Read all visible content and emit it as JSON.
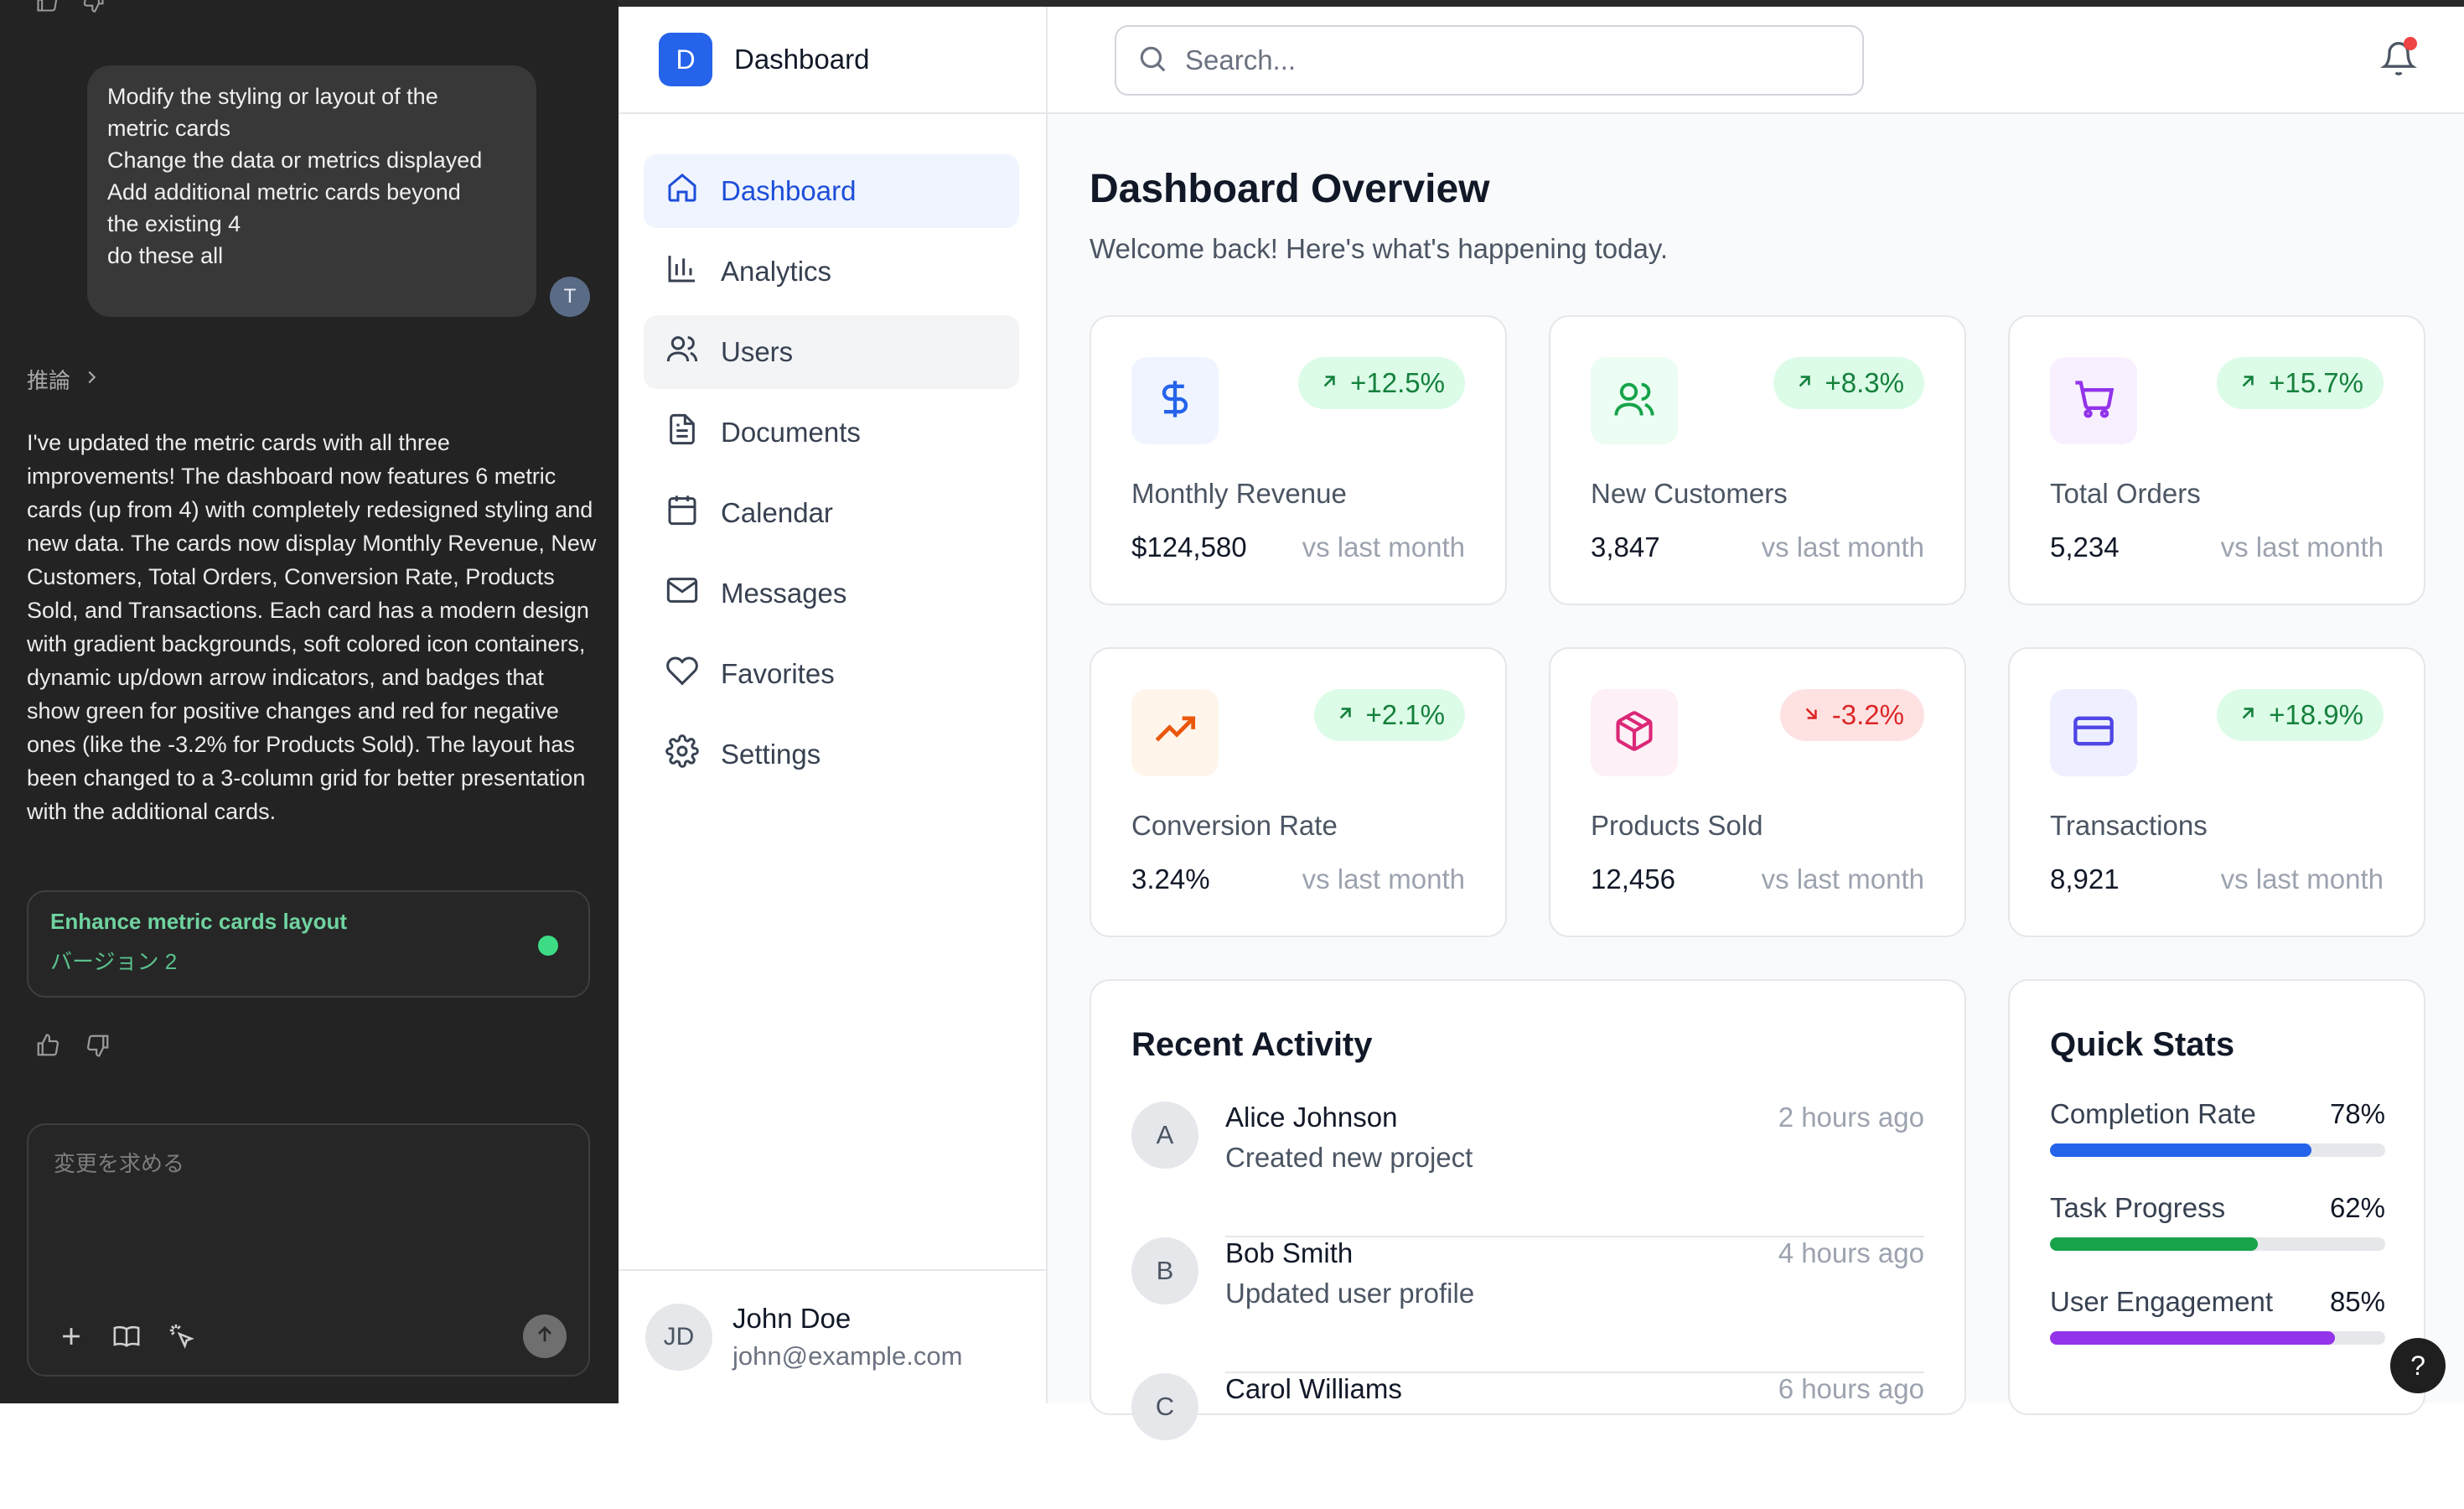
{
  "chat": {
    "user_message": {
      "lines": [
        "Modify the styling or layout of the",
        "metric cards",
        "Change the data or metrics displayed",
        "Add additional metric cards beyond",
        "the existing 4",
        "",
        "do these all"
      ],
      "avatar_initial": "T"
    },
    "reasoning_label": "推論",
    "assistant_message": "I've updated the metric cards with all three improvements! The dashboard now features 6 metric cards (up from 4) with completely redesigned styling and new data. The cards now display Monthly Revenue, New Customers, Total Orders, Conversion Rate, Products Sold, and Transactions. Each card has a modern design with gradient backgrounds, soft colored icon containers, dynamic up/down arrow indicators, and badges that show green for positive changes and red for negative ones (like the -3.2% for Products Sold). The layout has been changed to a 3-column grid for better presentation with the additional cards.",
    "artifact": {
      "title": "Enhance metric cards layout",
      "version": "バージョン 2"
    },
    "composer": {
      "placeholder": "変更を求める"
    }
  },
  "app": {
    "brand": {
      "logo_letter": "D",
      "name": "Dashboard"
    },
    "search": {
      "placeholder": "Search..."
    },
    "nav": [
      {
        "label": "Dashboard",
        "icon": "home-icon"
      },
      {
        "label": "Analytics",
        "icon": "bar-chart-icon"
      },
      {
        "label": "Users",
        "icon": "users-icon"
      },
      {
        "label": "Documents",
        "icon": "document-icon"
      },
      {
        "label": "Calendar",
        "icon": "calendar-icon"
      },
      {
        "label": "Messages",
        "icon": "mail-icon"
      },
      {
        "label": "Favorites",
        "icon": "heart-icon"
      },
      {
        "label": "Settings",
        "icon": "gear-icon"
      }
    ],
    "profile": {
      "initials": "JD",
      "name": "John Doe",
      "email": "john@example.com"
    },
    "page": {
      "title": "Dashboard Overview",
      "subtitle": "Welcome back! Here's what's happening today."
    },
    "metrics": [
      {
        "label": "Monthly Revenue",
        "value": "$124,580",
        "change": "+12.5%",
        "trend": "up",
        "compare": "vs last month",
        "icon": "dollar-icon",
        "color": "#2563eb",
        "bg": "#eff4ff"
      },
      {
        "label": "New Customers",
        "value": "3,847",
        "change": "+8.3%",
        "trend": "up",
        "compare": "vs last month",
        "icon": "users-icon",
        "color": "#16a34a",
        "bg": "#ecfdf3"
      },
      {
        "label": "Total Orders",
        "value": "5,234",
        "change": "+15.7%",
        "trend": "up",
        "compare": "vs last month",
        "icon": "cart-icon",
        "color": "#9333ea",
        "bg": "#f8f0ff"
      },
      {
        "label": "Conversion Rate",
        "value": "3.24%",
        "change": "+2.1%",
        "trend": "up",
        "compare": "vs last month",
        "icon": "trending-up-icon",
        "color": "#ea580c",
        "bg": "#fff5eb"
      },
      {
        "label": "Products Sold",
        "value": "12,456",
        "change": "-3.2%",
        "trend": "down",
        "compare": "vs last month",
        "icon": "package-icon",
        "color": "#db2777",
        "bg": "#fdf0f6"
      },
      {
        "label": "Transactions",
        "value": "8,921",
        "change": "+18.9%",
        "trend": "up",
        "compare": "vs last month",
        "icon": "credit-card-icon",
        "color": "#4f46e5",
        "bg": "#eef0ff"
      }
    ],
    "recent_activity": {
      "title": "Recent Activity",
      "items": [
        {
          "initial": "A",
          "name": "Alice Johnson",
          "action": "Created new project",
          "time": "2 hours ago"
        },
        {
          "initial": "B",
          "name": "Bob Smith",
          "action": "Updated user profile",
          "time": "4 hours ago"
        },
        {
          "initial": "C",
          "name": "Carol Williams",
          "action": "",
          "time": "6 hours ago"
        }
      ]
    },
    "quick_stats": {
      "title": "Quick Stats",
      "items": [
        {
          "label": "Completion Rate",
          "value": "78%",
          "percent": 78,
          "color": "#2563eb"
        },
        {
          "label": "Task Progress",
          "value": "62%",
          "percent": 62,
          "color": "#16a34a"
        },
        {
          "label": "User Engagement",
          "value": "85%",
          "percent": 85,
          "color": "#9333ea"
        }
      ]
    },
    "help_label": "?",
    "colors": {
      "up_text": "#15803d",
      "up_bg": "#dcfce7",
      "down_text": "#dc2626",
      "down_bg": "#fee2e2"
    }
  }
}
